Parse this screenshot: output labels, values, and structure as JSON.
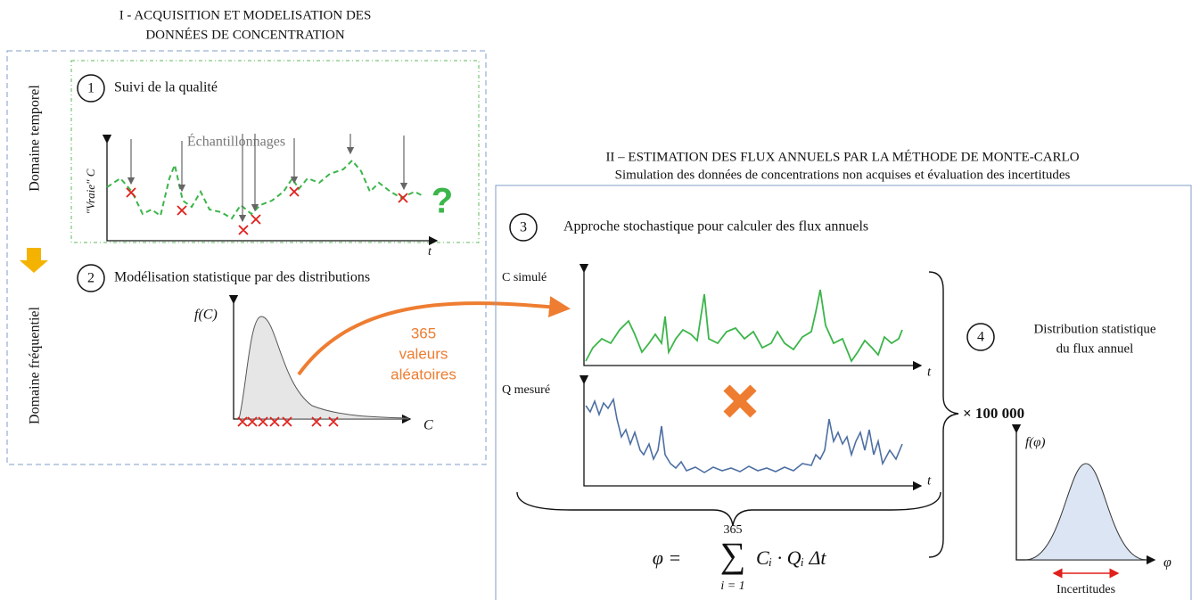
{
  "section1": {
    "title": [
      "I - ACQUISITION ET MODELISATION DES",
      "DONNÉES DE CONCENTRATION"
    ],
    "domain_time": "Domaine temporel",
    "domain_freq": "Domaine fréquentiel",
    "step1": {
      "number": "1",
      "label": "Suivi de la qualité",
      "sampling": "Échantillonnages",
      "y_label": "\"Vraie\" C",
      "x_label": "t",
      "question": "?"
    },
    "step2": {
      "number": "2",
      "label": "Modélisation statistique par des distributions",
      "y_label": "f(C)",
      "x_label": "C",
      "random": [
        "365",
        "valeurs",
        "aléatoires"
      ]
    }
  },
  "section2": {
    "title": [
      "II – ESTIMATION DES FLUX ANNUELS PAR LA MÉTHODE DE MONTE-CARLO",
      "Simulation des données de concentrations non acquises et évaluation des incertitudes"
    ],
    "step3": {
      "number": "3",
      "label": "Approche stochastique pour calculer des flux annuels",
      "c_label": "C simulé",
      "q_label": "Q mesuré",
      "t1": "t",
      "t2": "t"
    },
    "formula": {
      "lhs": "φ =",
      "upper": "365",
      "sum": "∑",
      "lower": "i = 1",
      "rhs": "Cᵢ · Qᵢ Δt"
    },
    "repeat": "× 100 000",
    "step4": {
      "number": "4",
      "label": [
        "Distribution statistique",
        "du flux annuel"
      ],
      "y_label": "f(φ)",
      "x_label": "φ",
      "uncertainty": "Incertitudes"
    }
  }
}
